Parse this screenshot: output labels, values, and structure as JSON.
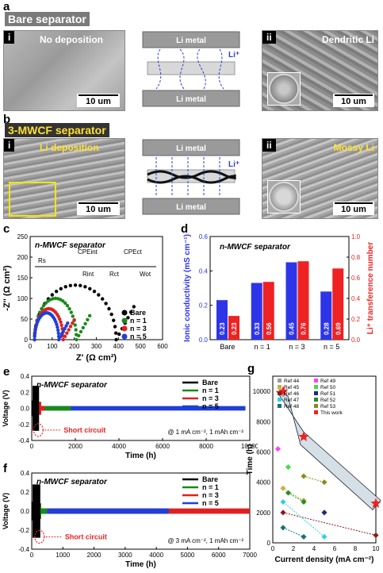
{
  "panel_a": {
    "letter": "a",
    "banner": "Bare separator",
    "left": {
      "index": "i",
      "caption": "No deposition",
      "scale": "10 um"
    },
    "middle": {
      "top_label": "Li metal",
      "bottom_label": "Li metal",
      "ion_label": "Li⁺"
    },
    "right": {
      "index": "ii",
      "caption": "Dendritic Li",
      "scale": "10 um"
    }
  },
  "panel_b": {
    "letter": "b",
    "banner": "3-MWCF separator",
    "left": {
      "index": "i",
      "caption": "Li deposition",
      "scale": "10 um"
    },
    "middle": {
      "top_label": "Li metal",
      "bottom_label": "Li metal",
      "ion_label": "Li⁺"
    },
    "right": {
      "index": "ii",
      "caption": "Mossy Li",
      "scale": "10 um"
    }
  },
  "chart_data": [
    {
      "panel": "c",
      "type": "scatter",
      "title": "n-MWCF separator",
      "xlabel": "Z' (Ω cm²)",
      "ylabel": "-Z'' (Ω cm²)",
      "xlim": [
        0,
        600
      ],
      "ylim": [
        0,
        250
      ],
      "xticks": [
        0,
        100,
        200,
        300,
        400,
        500,
        600
      ],
      "yticks": [
        0,
        50,
        100,
        150,
        200,
        250
      ],
      "circuit_labels": [
        "Rs",
        "CPEint",
        "Rint",
        "CPEct",
        "Rct",
        "Wot"
      ],
      "series": [
        {
          "name": "Bare",
          "color": "#000000",
          "arc_start": 20,
          "arc_end": 390,
          "peak": 132,
          "tail_end": [
            470,
            80
          ]
        },
        {
          "name": "n = 1",
          "color": "#1a8a1a",
          "arc_start": 20,
          "arc_end": 210,
          "peak": 100,
          "tail_end": [
            270,
            58
          ]
        },
        {
          "name": "n = 3",
          "color": "#e02020",
          "arc_start": 20,
          "arc_end": 150,
          "peak": 75,
          "tail_end": [
            200,
            48
          ]
        },
        {
          "name": "n = 5",
          "color": "#1f3fd8",
          "arc_start": 20,
          "arc_end": 130,
          "peak": 65,
          "tail_end": [
            170,
            40
          ]
        }
      ]
    },
    {
      "panel": "d",
      "type": "bar",
      "title": "n-MWCF separator",
      "categories": [
        "Bare",
        "n = 1",
        "n = 3",
        "n = 5"
      ],
      "ylabel_left": "Ionic conductivity (mS cm⁻¹)",
      "ylabel_right": "Li⁺ transference number",
      "ylim_left": [
        0,
        0.6
      ],
      "yticks_left": [
        "0.0",
        "0.2",
        "0.4",
        "0.6"
      ],
      "ylim_right": [
        0,
        1.0
      ],
      "yticks_right": [
        "0.0",
        "0.2",
        "0.4",
        "0.6",
        "0.8",
        "1.0"
      ],
      "series": [
        {
          "name": "Ionic conductivity",
          "axis": "left",
          "color": "#2e35e8",
          "values": [
            0.23,
            0.33,
            0.45,
            0.28
          ],
          "labels": [
            "0.23",
            "0.33",
            "0.45",
            "0.28"
          ]
        },
        {
          "name": "Li⁺ transference number",
          "axis": "right",
          "color": "#ee2222",
          "values": [
            0.23,
            0.56,
            0.76,
            0.69
          ],
          "labels": [
            "0.23",
            "0.56",
            "0.76",
            "0.69"
          ]
        }
      ]
    },
    {
      "panel": "e",
      "type": "line",
      "title": "n-MWCF separator",
      "xlabel": "Time (h)",
      "ylabel": "Voltage (V)",
      "xlim": [
        0,
        10000
      ],
      "ylim": [
        -0.4,
        0.4
      ],
      "xticks": [
        0,
        2000,
        4000,
        6000,
        8000,
        10000
      ],
      "yticks": [
        "-0.4",
        "-0.2",
        "0.0",
        "0.2",
        "0.4"
      ],
      "condition": "@ 1 mA cm⁻², 1 mAh cm⁻²",
      "annotation": "Short circuit",
      "series": [
        {
          "name": "Bare",
          "color": "#000000",
          "end_time": 300
        },
        {
          "name": "n = 1",
          "color": "#1a8a1a",
          "end_time": 1800
        },
        {
          "name": "n = 3",
          "color": "#e02020",
          "end_time": 600
        },
        {
          "name": "n = 5",
          "color": "#1f3fd8",
          "end_time": 9800
        }
      ]
    },
    {
      "panel": "f",
      "type": "line",
      "title": "n-MWCF separator",
      "xlabel": "Time (h)",
      "ylabel": "Voltage (V)",
      "xlim": [
        0,
        7000
      ],
      "ylim": [
        -0.4,
        0.4
      ],
      "xticks": [
        0,
        1000,
        2000,
        3000,
        4000,
        5000,
        6000,
        7000
      ],
      "yticks": [
        "-0.4",
        "-0.2",
        "0.0",
        "0.2",
        "0.4"
      ],
      "condition": "@ 3 mA cm⁻², 1 mAh cm⁻²",
      "annotation": "Short circuit",
      "series": [
        {
          "name": "Bare",
          "color": "#000000",
          "end_time": 250
        },
        {
          "name": "n = 1",
          "color": "#1a8a1a",
          "end_time": 500
        },
        {
          "name": "n = 3",
          "color": "#e02020",
          "end_time": 7000
        },
        {
          "name": "n = 5",
          "color": "#1f3fd8",
          "end_time": 4400
        }
      ]
    },
    {
      "panel": "g",
      "type": "scatter",
      "xlabel": "Current density (mA cm⁻²)",
      "ylabel": "Time (h)",
      "xlim": [
        0,
        10
      ],
      "ylim": [
        0,
        11000
      ],
      "xticks": [
        0,
        2,
        4,
        6,
        8,
        10
      ],
      "yticks": [
        0,
        2000,
        4000,
        6000,
        8000,
        10000
      ],
      "series": [
        {
          "name": "Ref 44",
          "color": "#9a9a9a",
          "points": [
            [
              1,
              9800
            ]
          ]
        },
        {
          "name": "Ref 45",
          "color": "#c8b040",
          "points": [
            [
              1,
              3600
            ],
            [
              3,
              2800
            ]
          ]
        },
        {
          "name": "Ref 46",
          "color": "#8b1a1a",
          "points": [
            [
              1,
              2000
            ],
            [
              10,
              500
            ]
          ]
        },
        {
          "name": "Ref 47",
          "color": "#30d0e0",
          "points": [
            [
              1,
              2700
            ],
            [
              5,
              400
            ]
          ]
        },
        {
          "name": "Ref 48",
          "color": "#1a7070",
          "points": [
            [
              1,
              1000
            ],
            [
              3,
              400
            ]
          ]
        },
        {
          "name": "Ref 49",
          "color": "#ff40ff",
          "points": [
            [
              0.5,
              6200
            ]
          ]
        },
        {
          "name": "Ref 50",
          "color": "#40e040",
          "points": [
            [
              1.5,
              5000
            ]
          ]
        },
        {
          "name": "Ref 51",
          "color": "#1a2a7a",
          "points": [
            [
              5,
              2000
            ]
          ]
        },
        {
          "name": "Ref 52",
          "color": "#2a8a2a",
          "points": [
            [
              3,
              2700
            ],
            [
              1.5,
              3300
            ]
          ]
        },
        {
          "name": "Ref 53",
          "color": "#8a8a1a",
          "points": [
            [
              3,
              4400
            ],
            [
              5,
              4000
            ]
          ]
        },
        {
          "name": "This work",
          "color": "#ee2222",
          "points": [
            [
              1,
              10000
            ],
            [
              3,
              7000
            ],
            [
              10,
              2600
            ]
          ]
        }
      ]
    }
  ],
  "panel_letters": {
    "c": "c",
    "d": "d",
    "e": "e",
    "f": "f",
    "g": "g"
  }
}
